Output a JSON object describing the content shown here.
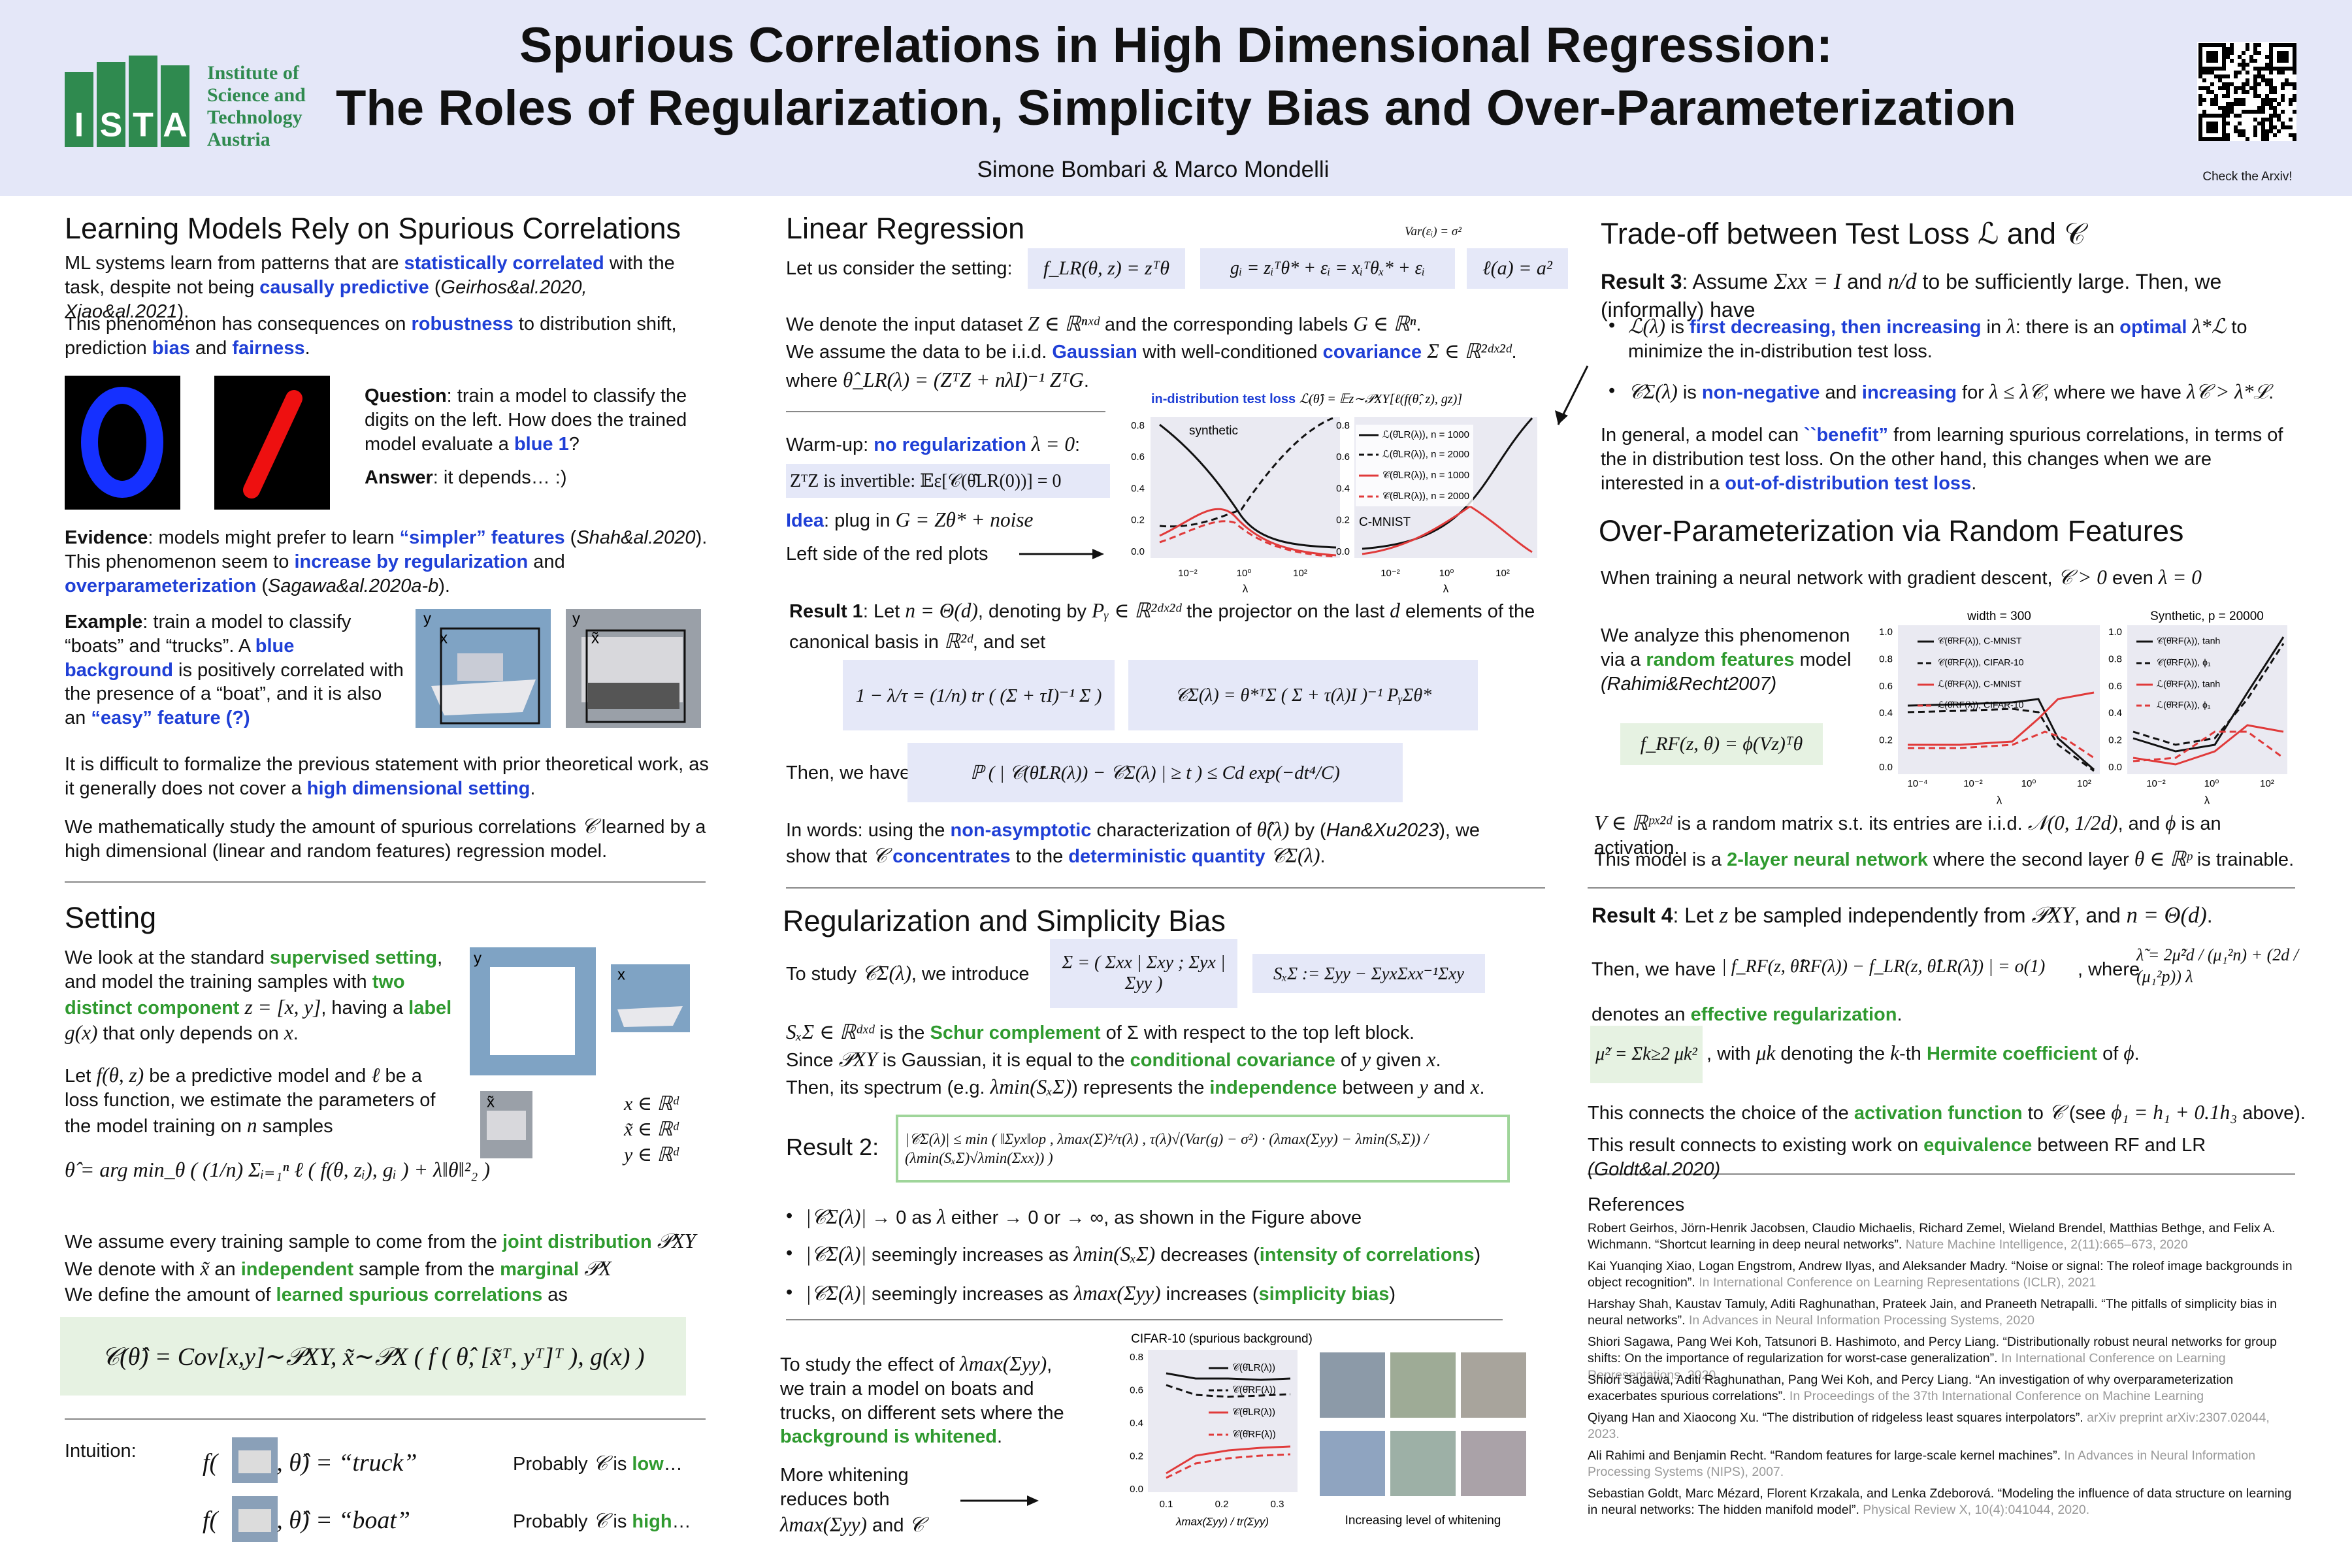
{
  "header": {
    "title_line1": "Spurious Correlations in High Dimensional Regression:",
    "title_line2": "The Roles of Regularization, Simplicity Bias and Over-Parameterization",
    "authors": "Simone Bombari & Marco Mondelli",
    "logo_letters": [
      "I",
      "S",
      "T",
      "A"
    ],
    "logo_text": [
      "Institute of",
      "Science and",
      "Technology",
      "Austria"
    ],
    "qr_caption": "Check the Arxiv!"
  },
  "intro": {
    "heading": "Learning Models Rely on Spurious Correlations",
    "p1": [
      "ML systems learn from patterns that are ",
      "statistically correlated",
      " with the task, despite not being ",
      "causally predictive",
      " (",
      "Geirhos&al.2020, Xiao&al.2021",
      ")."
    ],
    "p2": [
      "This phenomenon has consequences on ",
      "robustness",
      " to distribution shift, prediction ",
      "bias",
      " and ",
      "fairness",
      "."
    ],
    "question": [
      "Question",
      ": train a model to classify the digits on the left. How does the trained model evaluate a ",
      "blue 1",
      "?"
    ],
    "answer": [
      "Answer",
      ": it depends… :)"
    ],
    "evidence": [
      "Evidence",
      ": models might prefer to learn ",
      "“simpler” features",
      " (",
      "Shah&al.2020",
      "). This phenomenon seem to ",
      "increase by regularization",
      " and ",
      "overparameterization",
      " (",
      "Sagawa&al.2020a-b",
      ")."
    ],
    "example": [
      "Example",
      ": train a model to classify “boats” and “trucks”. A ",
      "blue background",
      " is positively correlated with the presence of a “boat”, and it is also an ",
      "“easy” feature (?)"
    ],
    "image_labels": [
      "y",
      "x",
      "y",
      "x̃"
    ],
    "p3": [
      "It is difficult to formalize the previous statement with prior theoretical work, as it generally does not cover a ",
      "high dimensional setting",
      "."
    ],
    "p4": [
      "We mathematically study the amount of spurious correlations ",
      "𝒞",
      " learned by a high dimensional (linear and random features) regression model."
    ]
  },
  "setting": {
    "heading": "Setting",
    "p1": [
      "We look at the standard ",
      "supervised setting",
      ", and model the training samples with ",
      "two distinct component",
      " ",
      "z = [x, y]",
      ", having a ",
      "label",
      " ",
      "g(x)",
      " that only depends on ",
      "x",
      "."
    ],
    "p2": [
      "Let ",
      "f(θ, z)",
      " be a predictive model and ",
      "ℓ",
      " be a loss function, we estimate the parameters of the model training on ",
      "n",
      " samples"
    ],
    "image_labels": [
      "y",
      "x",
      "x̃"
    ],
    "spaces": [
      "x ∈ ℝᵈ",
      "x̃ ∈ ℝᵈ",
      "y ∈ ℝᵈ"
    ],
    "estimator": "θ̂ = arg min_θ ( (1/n) Σᵢ₌₁ⁿ ℓ ( f(θ, zᵢ), gᵢ ) + λ‖θ‖²₂ )",
    "p3": [
      "We assume every training sample to come from the ",
      "joint distribution",
      " ",
      "𝒫XY"
    ],
    "p4": [
      "We denote with ",
      "x̃",
      " an ",
      "independent",
      " sample from the ",
      "marginal",
      " ",
      "𝒫X"
    ],
    "p5": [
      "We define the amount of ",
      "learned spurious correlations",
      " as"
    ],
    "definition": "𝒞(θ̂) = Cov[x,y]∼𝒫XY, x̃∼𝒫X ( f ( θ̂, [x̃ᵀ, yᵀ]ᵀ ), g(x) )",
    "intuition": "Intuition:",
    "row1": [
      "f(",
      ", θ̂) = “truck”"
    ],
    "row1_note": [
      "Probably ",
      "𝒞",
      " is ",
      "low",
      "…"
    ],
    "row2": [
      "f(",
      ", θ̂) = “boat”"
    ],
    "row2_note": [
      "Probably ",
      "𝒞",
      " is ",
      "high",
      "…"
    ]
  },
  "linear": {
    "heading": "Linear Regression",
    "setting_text": "Let us consider the setting:",
    "formulas": [
      "f_LR(θ, z) = zᵀθ",
      "gᵢ = zᵢᵀθ* + εᵢ = xᵢᵀθₓ* + εᵢ",
      "ℓ(a) = a²"
    ],
    "noise": "Var(εᵢ) = σ²",
    "p1": [
      "We denote the input dataset ",
      "Z ∈ ℝⁿˣᵈ",
      " and the corresponding labels ",
      "G ∈ ℝⁿ",
      "."
    ],
    "p2": [
      "We assume the data to be i.i.d. ",
      "Gaussian",
      " with well-conditioned ",
      "covariance",
      " ",
      "Σ ∈ ℝ²ᵈˣ²ᵈ",
      "."
    ],
    "p3": [
      "where ",
      "θ̂_LR(λ) = (ZᵀZ + nλI)⁻¹ ZᵀG",
      "."
    ],
    "warmup": [
      "Warm-up: ",
      "no regularization",
      " ",
      "λ = 0",
      ":"
    ],
    "invertible": "ZᵀZ is invertible: 𝔼ε[𝒞(θ̂LR(0))] = 0",
    "idea": [
      "Idea",
      ": plug in ",
      "G = Zθ* + noise"
    ],
    "left_side": "Left side of the red plots",
    "plot_title": [
      "in-distribution test loss",
      " ",
      "ℒ(θ̂) = 𝔼z∼𝒫XY[ℓ(f(θ̂, z), gz)]"
    ],
    "panel_titles": [
      "synthetic",
      "C-MNIST"
    ],
    "yticks": [
      "0.0",
      "0.2",
      "0.4",
      "0.6",
      "0.8"
    ],
    "xticks": [
      "10⁻²",
      "10⁰",
      "10²"
    ],
    "xlabel": "λ",
    "legend": [
      "ℒ(θ̂LR(λ)), n = 1000",
      "ℒ(θ̂LR(λ)), n = 2000",
      "𝒞(θ̂LR(λ)), n = 1000",
      "𝒞(θ̂LR(λ)), n = 2000"
    ],
    "result1": [
      "Result 1",
      ": Let ",
      "n = Θ(d)",
      ", denoting by ",
      "Pᵧ ∈ ℝ²ᵈˣ²ᵈ",
      " the projector on the last ",
      "d",
      " elements of the canonical basis in ",
      "ℝ²ᵈ",
      ", and set"
    ],
    "tau": "1 − λ/τ = (1/n) tr ( (Σ + τI)⁻¹ Σ )",
    "cs": "𝒞Σ(λ) = θ*ᵀΣ ( Σ + τ(λ)I )⁻¹ PᵧΣθ*",
    "then": "Then, we have",
    "bound": "ℙ ( | 𝒞(θ̂LR(λ)) − 𝒞Σ(λ) | ≥ t ) ≤ Cd exp(−dt⁴/C)",
    "words": [
      "In words: using the ",
      "non-asymptotic",
      " characterization of ",
      "θ̂(λ)",
      " by (",
      "Han&Xu2023",
      "), we show that ",
      "𝒞",
      " ",
      "concentrates",
      " to the ",
      "deterministic quantity",
      " ",
      "𝒞Σ(λ)",
      "."
    ]
  },
  "regularization": {
    "heading": "Regularization and Simplicity Bias",
    "intro": [
      "To study ",
      "𝒞Σ(λ)",
      ", we introduce"
    ],
    "sigma": "Σ = ( Σxx | Σxy ; Σyx | Σyy )",
    "schur": "SₓΣ := Σyy − ΣyxΣxx⁻¹Σxy",
    "p1": [
      "SₓΣ ∈ ℝᵈˣᵈ",
      " is the ",
      "Schur complement",
      " of Σ with respect to the top left block."
    ],
    "p2": [
      "Since ",
      "𝒫XY",
      " is Gaussian, it is equal to the ",
      "conditional covariance",
      " of ",
      "y",
      " given ",
      "x",
      "."
    ],
    "p3": [
      "Then, its spectrum (e.g. ",
      "λmin(SₓΣ)",
      ") represents the ",
      "independence",
      " between ",
      "y",
      " and ",
      "x",
      "."
    ],
    "result2": "Result 2:",
    "bound": "|𝒞Σ(λ)| ≤ min ( ‖Σyx‖op , λmax(Σ)²/τ(λ) , τ(λ)√(Var(g) − σ²) · (λmax(Σyy) − λmin(SₓΣ)) / (λmin(SₓΣ)√λmin(Σxx)) )",
    "bullets": [
      [
        "|𝒞Σ(λ)|",
        " → 0 as ",
        "λ",
        " either → 0 or → ∞, as shown in the Figure above"
      ],
      [
        "|𝒞Σ(λ)|",
        " seemingly increases as ",
        "λmin(SₓΣ)",
        " decreases (",
        "intensity of correlations",
        ")"
      ],
      [
        "|𝒞Σ(λ)|",
        " seemingly increases as ",
        "λmax(Σyy)",
        " increases (",
        "simplicity bias",
        ")"
      ]
    ],
    "study": [
      "To study the effect of ",
      "λmax(Σyy)",
      ", we train a model on boats and trucks, on different sets where the ",
      "background is whitened",
      "."
    ],
    "more": [
      "More whitening reduces both ",
      "λmax(Σyy)",
      " and ",
      "𝒞"
    ],
    "plot_title": "CIFAR-10 (spurious background)",
    "yticks": [
      "0.0",
      "0.2",
      "0.4",
      "0.6",
      "0.8"
    ],
    "xticks": [
      "0.1",
      "0.2",
      "0.3"
    ],
    "xlabel": "λmax(Σyy) / tr(Σyy)",
    "legend": [
      "𝒞(θ̂LR(λ))",
      "𝒞(θ̂RF(λ))",
      "𝒞(θ̂LR(λ))",
      "𝒞(θ̂RF(λ))"
    ],
    "caption": "Increasing level of whitening"
  },
  "tradeoff": {
    "heading": "Trade-off between Test Loss ℒ and 𝒞",
    "result3": [
      "Result 3",
      ": Assume ",
      "Σxx = I",
      " and ",
      "n/d",
      " to be sufficiently large. Then, we (informally) have"
    ],
    "bullets": [
      [
        "ℒ(λ)",
        " is ",
        "first decreasing, then increasing",
        " in ",
        "λ",
        ": there is an ",
        "optimal",
        " ",
        "λ*ℒ",
        " to minimize the in-distribution test loss."
      ],
      [
        "𝒞Σ(λ)",
        " is ",
        "non-negative",
        " and ",
        "increasing",
        " for ",
        "λ ≤ λ𝒞",
        ", where we have ",
        "λ𝒞 > λ*ℒ",
        "."
      ]
    ],
    "p1": [
      "In general, a model can ",
      "``benefit”",
      " from learning spurious correlations, in terms of the in distribution test loss. On the other hand, this changes when we are interested in a ",
      "out-of-distribution test loss",
      "."
    ]
  },
  "random_features": {
    "heading": "Over-Parameterization via Random Features",
    "p1": [
      "When training a neural network with gradient descent, ",
      "𝒞 > 0",
      " even ",
      "λ = 0"
    ],
    "p2": [
      "We analyze this phenomenon via a ",
      "random features",
      " model ",
      "(Rahimi&Recht2007)"
    ],
    "model": "f_RF(z, θ) = ϕ(Vz)ᵀθ",
    "panel_titles": [
      "width = 300",
      "Synthetic, p = 20000"
    ],
    "yticks": [
      "0.0",
      "0.2",
      "0.4",
      "0.6",
      "0.8",
      "1.0"
    ],
    "xticks_left": [
      "10⁻⁴",
      "10⁻²",
      "10⁰",
      "10²"
    ],
    "xticks_right": [
      "10⁻²",
      "10⁰",
      "10²"
    ],
    "xlabel": "λ",
    "legend_left": [
      "𝒞(θ̂RF(λ)), C-MNIST",
      "𝒞(θ̂RF(λ)), CIFAR-10",
      "ℒ(θ̂RF(λ)), C-MNIST",
      "ℒ(θ̂RF(λ)), CIFAR-10"
    ],
    "legend_right": [
      "𝒞(θ̂RF(λ)), tanh",
      "𝒞(θ̂RF(λ)), ϕ₁",
      "ℒ(θ̂RF(λ)), tanh",
      "ℒ(θ̂RF(λ)), ϕ₁"
    ],
    "p3": [
      "V ∈ ℝᵖˣ²ᵈ",
      " is a random matrix s.t. its entries are i.i.d. ",
      "𝒩(0, 1/2d)",
      ", and ",
      "ϕ",
      " is an activation."
    ],
    "p4": [
      "This model is a ",
      "2-layer neural network",
      " where the second layer ",
      "θ ∈ ℝᵖ",
      " is trainable."
    ],
    "result4": [
      "Result 4",
      ": Let ",
      "z",
      " be sampled independently from ",
      "𝒫XY",
      ", and ",
      "n = Θ(d)",
      "."
    ],
    "then": "Then, we have",
    "equiv": "| f_RF(z, θ̂RF(λ)) − f_LR(z, θ̂LR(λ̃)) | = o(1)",
    "where": ", where",
    "lambda_tilde": "λ̃ = 2μ̃²d / (μ₁²n) + (2d / (μ₁²p)) λ",
    "p5": [
      "denotes an ",
      "effective regularization",
      "."
    ],
    "mu": "μ̃² = Σk≥2 μk²",
    "p6": [
      ", with ",
      "μk",
      " denoting the ",
      "k",
      "-th ",
      "Hermite coefficient",
      " of ",
      "ϕ",
      "."
    ],
    "p7": [
      "This connects the choice of the ",
      "activation function",
      " to ",
      "𝒞",
      " (see ",
      "ϕ₁ = h₁ + 0.1h₃",
      " above)."
    ],
    "p8": [
      "This result connects to existing work on ",
      "equivalence",
      " between RF and LR ",
      "(Goldt&al.2020)"
    ]
  },
  "references": {
    "heading": "References",
    "items": [
      [
        "Robert Geirhos, Jörn-Henrik Jacobsen, Claudio Michaelis, Richard Zemel, Wieland Brendel, Matthias Bethge, and Felix A. Wichmann. “Shortcut learning in deep neural networks”. ",
        "Nature Machine Intelligence, 2(11):665–673, 2020"
      ],
      [
        "Kai Yuanqing Xiao, Logan Engstrom, Andrew Ilyas, and Aleksander Madry. “Noise or signal: The roleof image backgrounds in object recognition”. ",
        "In International Conference on Learning Representations (ICLR), 2021"
      ],
      [
        "Harshay Shah, Kaustav Tamuly, Aditi Raghunathan, Prateek Jain, and Praneeth Netrapalli. “The pitfalls of simplicity bias in neural networks”. ",
        "In Advances in Neural Information Processing Systems, 2020"
      ],
      [
        "Shiori Sagawa, Pang Wei Koh, Tatsunori B. Hashimoto, and Percy Liang. “Distributionally robust neural networks for group shifts: On the importance of regularization for worst-case generalization”. ",
        "In International Conference on Learning Representations, 2020"
      ],
      [
        "Shiori Sagawa, Aditi Raghunathan, Pang Wei Koh, and Percy Liang. “An investigation of why overparameterization exacerbates spurious correlations”. ",
        "In Proceedings of the 37th International Conference on Machine Learning"
      ],
      [
        "Qiyang Han and Xiaocong Xu. “The distribution of ridgeless least squares interpolators”. ",
        "arXiv preprint arXiv:2307.02044, 2023."
      ],
      [
        "Ali Rahimi and Benjamin Recht. “Random features for large-scale kernel machines”. ",
        "In Advances in Neural Information Processing Systems (NIPS), 2007."
      ],
      [
        "Sebastian Goldt, Marc Mézard, Florent Krzakala, and Lenka Zdeborová. “Modeling the influence of data structure on learning in neural networks: The hidden manifold model”. ",
        "Physical Review X, 10(4):041044, 2020."
      ]
    ]
  }
}
